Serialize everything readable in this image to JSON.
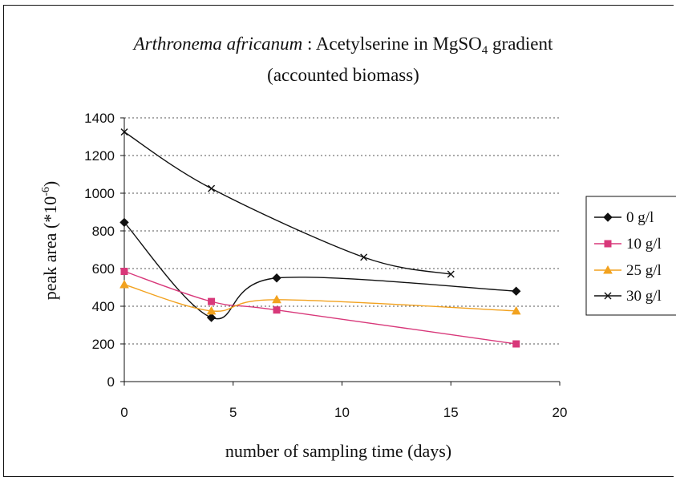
{
  "chart_data": {
    "type": "line",
    "title_italic": "Arthronema africanum",
    "title_rest": " : Acetylserine in MgSO",
    "title_sub": "4",
    "title_end": " gradient",
    "subtitle": "(accounted biomass)",
    "xlabel": "number of sampling time (days)",
    "ylabel_main": "peak area (*10",
    "ylabel_sup": "-6",
    "ylabel_end": ")",
    "xlim": [
      0,
      20
    ],
    "ylim": [
      0,
      1400
    ],
    "xticks": [
      "0",
      "5",
      "10",
      "15",
      "20"
    ],
    "yticks": [
      "0",
      "200",
      "400",
      "600",
      "800",
      "1000",
      "1200",
      "1400"
    ],
    "grid": "horizontal-dotted",
    "legend_position": "right",
    "series": [
      {
        "name": "0 g/l",
        "color": "#111111",
        "marker": "diamond",
        "x": [
          0,
          4,
          7,
          18
        ],
        "y": [
          845,
          340,
          550,
          480
        ]
      },
      {
        "name": "10 g/l",
        "color": "#d8387a",
        "marker": "square",
        "x": [
          0,
          4,
          7,
          18
        ],
        "y": [
          585,
          425,
          380,
          200
        ]
      },
      {
        "name": "25 g/l",
        "color": "#f2a21f",
        "marker": "triangle",
        "x": [
          0,
          4,
          7,
          18
        ],
        "y": [
          515,
          375,
          435,
          375
        ]
      },
      {
        "name": "30 g/l",
        "color": "#111111",
        "marker": "x",
        "x": [
          0,
          4,
          11,
          15
        ],
        "y": [
          1325,
          1025,
          660,
          570
        ]
      }
    ]
  }
}
